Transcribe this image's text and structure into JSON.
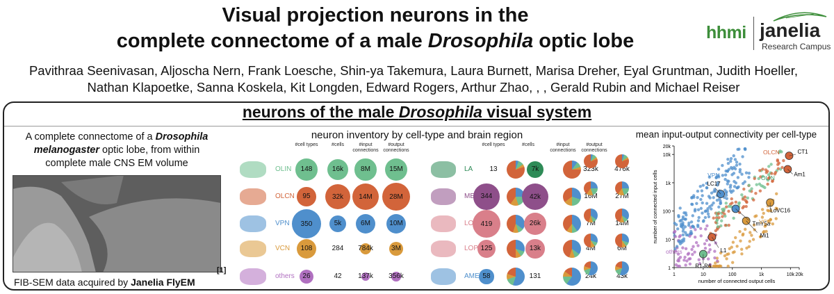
{
  "header": {
    "title_line1": "Visual projection neurons in the",
    "title_line2_pre": "complete connectome of a male ",
    "title_line2_italic": "Drosophila",
    "title_line2_post": " optic lobe",
    "authors": "Pavithraa Seenivasan, Aljoscha Nern, Frank Loesche, Shin-ya Takemura, Laura Burnett, Marisa Dreher, Eyal Gruntman, Judith Hoeller, Nathan Klapoetke, Sanna Koskela, Kit Longden, Edward Rogers, Arthur Zhao, , , Gerald Rubin and Michael Reiser"
  },
  "logo": {
    "hhmi": "hhmi",
    "janelia": "janelia",
    "campus": "Research Campus"
  },
  "panel": {
    "title_pre": "neurons of the male ",
    "title_italic": "Drosophila",
    "title_post": " visual system"
  },
  "left": {
    "caption_l1_pre": "A complete connectome of a ",
    "caption_l1_bold": "Drosophila",
    "caption_l2_bold": "melanogaster",
    "caption_l2_post": " optic lobe, from within",
    "caption_l3": "complete male CNS EM volume",
    "footnote_pre": "FIB-SEM data acquired by ",
    "footnote_bold": "Janelia FlyEM",
    "ref": "[1]"
  },
  "inventory": {
    "title": "neuron inventory by cell-type and brain region",
    "headers": [
      "#cell types",
      "#cells",
      "#input connections",
      "#output connections"
    ],
    "by_type": [
      {
        "name": "OLIN",
        "color": "#6fbf8f",
        "cell_types": "148",
        "cells": "16k",
        "inputs": "8M",
        "outputs": "15M",
        "ct": 148,
        "c": 16000,
        "i": 8,
        "o": 15
      },
      {
        "name": "OLCN",
        "color": "#d2643a",
        "cell_types": "95",
        "cells": "32k",
        "inputs": "14M",
        "outputs": "28M",
        "ct": 95,
        "c": 32000,
        "i": 14,
        "o": 28
      },
      {
        "name": "VPN",
        "color": "#4f8fcc",
        "cell_types": "350",
        "cells": "5k",
        "inputs": "6M",
        "outputs": "10M",
        "ct": 350,
        "c": 5000,
        "i": 6,
        "o": 10
      },
      {
        "name": "VCN",
        "color": "#d99a3c",
        "cell_types": "108",
        "cells": "284",
        "inputs": "784k",
        "outputs": "3M",
        "ct": 108,
        "c": 284,
        "i": 0.784,
        "o": 3
      },
      {
        "name": "others",
        "color": "#b070c0",
        "cell_types": "26",
        "cells": "42",
        "inputs": "137k",
        "outputs": "356k",
        "ct": 26,
        "c": 42,
        "i": 0.137,
        "o": 0.356
      }
    ],
    "by_region": [
      {
        "name": "LA",
        "color": "#2e8b57",
        "cell_types": "13",
        "cells": "7k",
        "inputs": "323k",
        "outputs": "476k",
        "ct": 13,
        "c": 7000
      },
      {
        "name": "ME",
        "color": "#8e4f8a",
        "cell_types": "344",
        "cells": "42k",
        "inputs": "16M",
        "outputs": "27M",
        "ct": 344,
        "c": 42000
      },
      {
        "name": "LO",
        "color": "#d97f8a",
        "cell_types": "419",
        "cells": "26k",
        "inputs": "7M",
        "outputs": "14M",
        "ct": 419,
        "c": 26000
      },
      {
        "name": "LOP",
        "color": "#d97f8a",
        "cell_types": "125",
        "cells": "13k",
        "inputs": "4M",
        "outputs": "6M",
        "ct": 125,
        "c": 13000
      },
      {
        "name": "AME",
        "color": "#4f8fcc",
        "cell_types": "58",
        "cells": "131",
        "inputs": "24k",
        "outputs": "43k",
        "ct": 58,
        "c": 131
      }
    ]
  },
  "connectivity": {
    "title": "mean input-output connectivity per cell-type",
    "xlabel": "number of connected output cells",
    "ylabel": "number of connected input cells",
    "xticks": [
      "1",
      "10",
      "100",
      "1k",
      "10k",
      "20k"
    ],
    "yticks": [
      "1",
      "10",
      "100",
      "1k",
      "10k",
      "20k"
    ],
    "group_labels": [
      {
        "text": "OLCN",
        "color": "#d2643a"
      },
      {
        "text": "OLIN",
        "color": "#3e9e6a"
      },
      {
        "text": "VPN",
        "color": "#4f8fcc"
      },
      {
        "text": "VCN",
        "color": "#d99a3c"
      },
      {
        "text": "others",
        "color": "#b070c0"
      }
    ],
    "annotations": [
      "CT1",
      "Am1",
      "LoVC16",
      "TmY5a",
      "Mi1",
      "LC17",
      "L1",
      "R1-R6"
    ]
  },
  "chart_data": {
    "type": "scatter",
    "title": "mean input-output connectivity per cell-type",
    "xlabel": "number of connected output cells",
    "ylabel": "number of connected input cells",
    "xscale": "log",
    "yscale": "log",
    "xlim": [
      1,
      20000
    ],
    "ylim": [
      1,
      20000
    ],
    "highlighted": [
      {
        "name": "CT1",
        "x": 9000,
        "y": 9000,
        "group": "OLCN"
      },
      {
        "name": "Am1",
        "x": 8000,
        "y": 3000,
        "group": "OLCN"
      },
      {
        "name": "LoVC16",
        "x": 2000,
        "y": 200,
        "group": "VCN"
      },
      {
        "name": "TmY5a",
        "x": 130,
        "y": 120,
        "group": "VPN"
      },
      {
        "name": "Mi1",
        "x": 300,
        "y": 45,
        "group": "VCN"
      },
      {
        "name": "LC17",
        "x": 40,
        "y": 400,
        "group": "VPN"
      },
      {
        "name": "L1",
        "x": 20,
        "y": 12,
        "group": "OLCN"
      },
      {
        "name": "R1-R6",
        "x": 10,
        "y": 3,
        "group": "OLIN"
      }
    ]
  }
}
